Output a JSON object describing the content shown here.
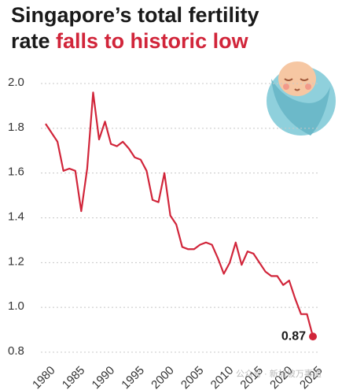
{
  "chart_data": {
    "type": "line",
    "title": "Singapore’s total fertility",
    "title_line2": "rate",
    "title_highlight": "falls to historic low",
    "x": [
      1980,
      1981,
      1982,
      1983,
      1984,
      1985,
      1986,
      1987,
      1988,
      1989,
      1990,
      1991,
      1992,
      1993,
      1994,
      1995,
      1996,
      1997,
      1998,
      1999,
      2000,
      2001,
      2002,
      2003,
      2004,
      2005,
      2006,
      2007,
      2008,
      2009,
      2010,
      2011,
      2012,
      2013,
      2014,
      2015,
      2016,
      2017,
      2018,
      2019,
      2020,
      2021,
      2022,
      2023,
      2024,
      2025
    ],
    "values": [
      1.82,
      1.78,
      1.74,
      1.61,
      1.62,
      1.61,
      1.43,
      1.62,
      1.96,
      1.75,
      1.83,
      1.73,
      1.72,
      1.74,
      1.71,
      1.67,
      1.66,
      1.61,
      1.48,
      1.47,
      1.6,
      1.41,
      1.37,
      1.27,
      1.26,
      1.26,
      1.28,
      1.29,
      1.28,
      1.22,
      1.15,
      1.2,
      1.29,
      1.19,
      1.25,
      1.24,
      1.2,
      1.16,
      1.14,
      1.14,
      1.1,
      1.12,
      1.04,
      0.97,
      0.97,
      0.87
    ],
    "color": "#d1253a",
    "xlim": [
      1980,
      2025
    ],
    "xticks": [
      1980,
      1985,
      1990,
      1995,
      2000,
      2005,
      2010,
      2015,
      2020,
      2025
    ],
    "ylim": [
      0.8,
      2.0
    ],
    "yticks": [
      0.8,
      {
        "value": 1.0,
        "label": "1.0"
      },
      1.2,
      1.4,
      1.6,
      1.8,
      {
        "value": 2.0,
        "label": "2.0"
      }
    ],
    "grid": true,
    "watermark": "公众号 · 新加坡万事通"
  }
}
